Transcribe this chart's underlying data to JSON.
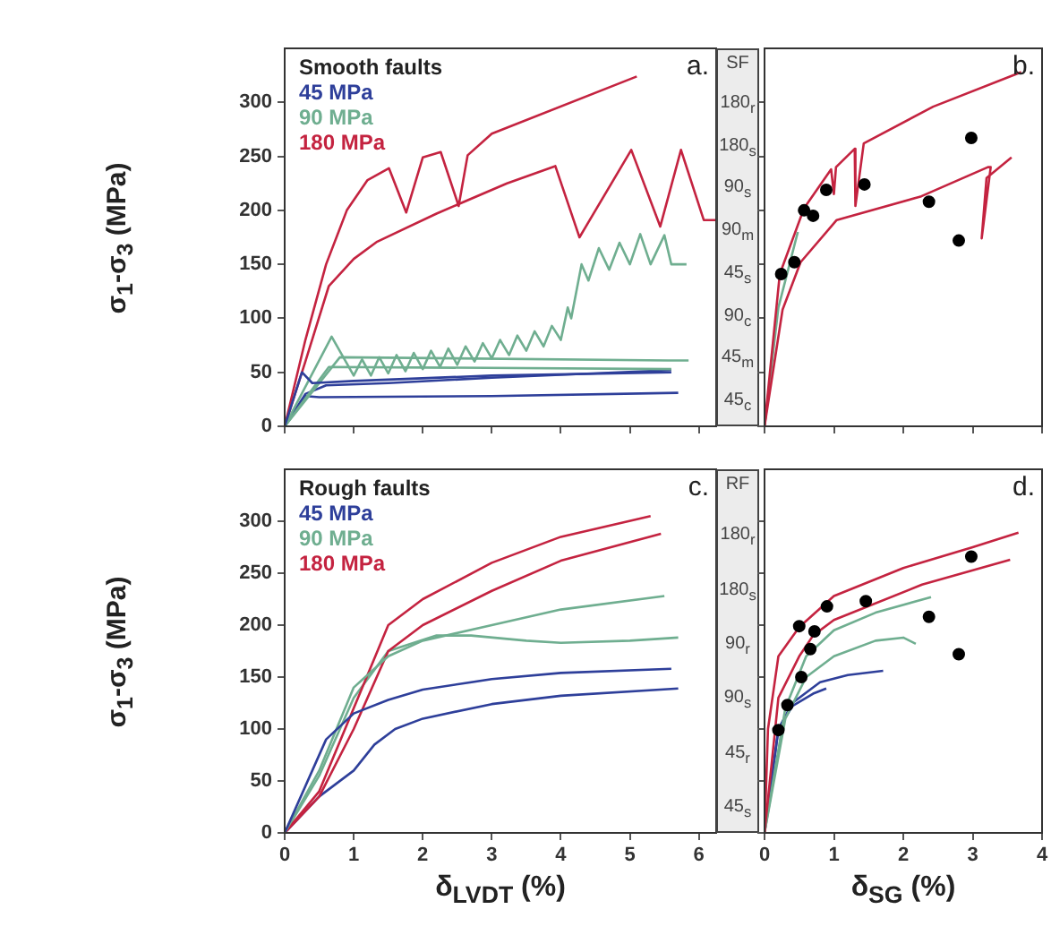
{
  "chart_data": [
    {
      "type": "line",
      "title": "a.",
      "legend_title": "Smooth faults",
      "ylabel": "σ$_{1}$-σ$_{3}$ (MPa)",
      "xlim": [
        0,
        6.25
      ],
      "xticks": [
        0,
        1,
        2,
        3,
        4,
        5,
        6
      ],
      "ylim": [
        0,
        350
      ],
      "yticks": [
        0,
        50,
        100,
        150,
        200,
        250,
        300
      ],
      "tick_labels": "y",
      "legend": "top left",
      "annotations": [
        "SF",
        "180$_{r}$",
        "180$_{s}$",
        "90$_{s}$",
        "90$_{m}$",
        "45$_{s}$",
        "90$_{c}$",
        "45$_{m}$",
        "45$_{c}$"
      ],
      "series": [
        {
          "name": "45 MPa",
          "color": "#2e3f9a",
          "x": [
            0,
            0.25,
            0.4,
            1,
            3,
            5.6
          ],
          "values": [
            0,
            50,
            40,
            42,
            47,
            50
          ]
        },
        {
          "name": "90 MPa",
          "color": "#6fae90",
          "x": [
            0,
            0.68,
            1.0,
            1.12,
            1.25,
            1.37,
            1.5,
            1.62,
            1.75,
            1.87,
            2.0,
            2.12,
            2.25,
            2.37,
            2.5,
            2.62,
            2.75,
            2.87,
            3.0,
            3.12,
            3.25,
            3.37,
            3.5,
            3.62,
            3.75,
            3.87,
            4.0,
            4.1,
            4.15,
            4.3,
            4.4,
            4.55,
            4.7,
            4.85,
            5.0,
            5.15,
            5.3,
            5.5,
            5.6,
            5.82
          ],
          "values": [
            0,
            83,
            47,
            62,
            47,
            64,
            49,
            66,
            51,
            68,
            53,
            70,
            55,
            72,
            57,
            74,
            60,
            77,
            63,
            80,
            66,
            84,
            70,
            88,
            74,
            93,
            80,
            110,
            100,
            150,
            135,
            165,
            145,
            170,
            150,
            178,
            150,
            177,
            150,
            150
          ]
        },
        {
          "name": "180 MPa",
          "color": "#c42340",
          "x": [
            0,
            0.3,
            0.6,
            0.9,
            1.2,
            1.51,
            1.76,
            2.0,
            2.26,
            2.52,
            2.65,
            3.0,
            5.1
          ],
          "values": [
            0,
            80,
            150,
            200,
            228,
            239,
            198,
            249,
            254,
            204,
            251,
            271,
            324
          ]
        },
        {
          "color": "#c42340",
          "x": [
            0,
            0.3,
            0.64,
            1.0,
            1.34,
            2.2,
            3.22,
            3.92,
            4.27,
            5.02,
            5.44,
            5.74,
            6.07,
            6.24
          ],
          "values": [
            0,
            60,
            130,
            155,
            171,
            197,
            225,
            241,
            175,
            256,
            185,
            256,
            191,
            191
          ]
        },
        {
          "color": "#6fae90",
          "x": [
            0,
            0.8,
            5.55,
            5.85
          ],
          "values": [
            0,
            64,
            61,
            61
          ]
        },
        {
          "color": "#6fae90",
          "x": [
            0,
            0.64,
            5.6
          ],
          "values": [
            0,
            55,
            53
          ]
        },
        {
          "color": "#2e3f9a",
          "x": [
            0,
            0.3,
            0.6,
            1.5,
            3,
            5.6
          ],
          "values": [
            0,
            30,
            38,
            40,
            45,
            52
          ]
        },
        {
          "color": "#2e3f9a",
          "x": [
            0,
            0.3,
            0.5,
            3,
            5.7
          ],
          "values": [
            0,
            28,
            27,
            28,
            31
          ]
        }
      ]
    },
    {
      "type": "line",
      "title": "b.",
      "xlim": [
        0,
        4
      ],
      "xticks": [
        0,
        1,
        2,
        3,
        4
      ],
      "ylim": [
        0,
        350
      ],
      "yticks": [
        0,
        50,
        100,
        150,
        200,
        250,
        300
      ],
      "tick_labels": false,
      "series": [
        {
          "color": "#c42340",
          "x": [
            0,
            0.22,
            0.57,
            0.96,
            1.0,
            1.03,
            1.3,
            1.31,
            1.43,
            2.43,
            3.7
          ],
          "values": [
            0,
            141,
            202,
            238,
            215,
            240,
            257,
            204,
            262,
            296,
            328
          ]
        },
        {
          "color": "#c42340",
          "x": [
            0,
            0.26,
            0.52,
            1.04,
            2.26,
            3.22,
            3.26,
            3.13,
            3.2,
            3.56
          ],
          "values": [
            0,
            108,
            152,
            191,
            213,
            240,
            240,
            174,
            230,
            249
          ]
        },
        {
          "color": "#6fae90",
          "x": [
            0,
            0.2,
            0.48
          ],
          "values": [
            0,
            110,
            180
          ]
        },
        {
          "type": "scatter",
          "color": "#000000",
          "marker": "circle",
          "x": [
            0.24,
            0.43,
            0.57,
            0.7,
            0.89,
            1.44,
            2.37,
            2.8,
            2.98
          ],
          "values": [
            141,
            152,
            200,
            195,
            219,
            224,
            208,
            172,
            267
          ]
        }
      ]
    },
    {
      "type": "line",
      "title": "c.",
      "legend_title": "Rough faults",
      "ylabel": "σ$_{1}$-σ$_{3}$ (MPa)",
      "xlabel": "δ$_{LVDT}$ (%)",
      "xlim": [
        0,
        6.25
      ],
      "xticks": [
        0,
        1,
        2,
        3,
        4,
        5,
        6
      ],
      "ylim": [
        0,
        350
      ],
      "yticks": [
        0,
        50,
        100,
        150,
        200,
        250,
        300
      ],
      "legend": "top left",
      "annotations": [
        "RF",
        "180$_{r}$",
        "180$_{s}$",
        "90$_{r}$",
        "90$_{s}$",
        "45$_{r}$",
        "45$_{s}$"
      ],
      "series": [
        {
          "name": "45 MPa",
          "color": "#2e3f9a",
          "x": [
            0,
            0.4,
            0.6,
            1,
            1.5,
            2,
            3,
            4,
            5.6
          ],
          "values": [
            0,
            60,
            90,
            115,
            128,
            138,
            148,
            154,
            158
          ]
        },
        {
          "name": "90 MPa",
          "color": "#6fae90",
          "x": [
            0,
            0.5,
            1,
            1.5,
            2,
            3,
            4,
            5.5
          ],
          "values": [
            0,
            60,
            140,
            170,
            185,
            200,
            215,
            228
          ]
        },
        {
          "name": "180 MPa",
          "color": "#c42340",
          "x": [
            0,
            0.5,
            1.0,
            1.5,
            2,
            3,
            4,
            5.3
          ],
          "values": [
            0,
            40,
            120,
            200,
            225,
            260,
            285,
            305
          ]
        },
        {
          "color": "#c42340",
          "x": [
            0,
            0.5,
            1,
            1.5,
            2,
            3,
            4,
            5.45
          ],
          "values": [
            0,
            35,
            100,
            175,
            200,
            233,
            262,
            288
          ]
        },
        {
          "color": "#6fae90",
          "x": [
            0,
            0.5,
            1,
            1.5,
            2.2,
            2.7,
            3.5,
            4,
            5,
            5.7
          ],
          "values": [
            0,
            55,
            130,
            175,
            190,
            190,
            185,
            183,
            185,
            188
          ]
        },
        {
          "color": "#2e3f9a",
          "x": [
            0,
            0.5,
            1,
            1.3,
            1.6,
            2,
            3,
            4,
            5.7
          ],
          "values": [
            0,
            35,
            60,
            85,
            100,
            110,
            124,
            132,
            139
          ]
        }
      ]
    },
    {
      "type": "line",
      "title": "d.",
      "xlabel": "δ$_{SG}$ (%)",
      "xlim": [
        0,
        4
      ],
      "xticks": [
        0,
        1,
        2,
        3,
        4
      ],
      "ylim": [
        0,
        350
      ],
      "yticks": [
        0,
        50,
        100,
        150,
        200,
        250,
        300
      ],
      "tick_labels": "x",
      "series": [
        {
          "color": "#c42340",
          "x": [
            0,
            0.05,
            0.2,
            0.5,
            1,
            2,
            3,
            3.66
          ],
          "values": [
            0,
            100,
            170,
            198,
            228,
            255,
            275,
            289
          ]
        },
        {
          "color": "#c42340",
          "x": [
            0,
            0.2,
            0.5,
            0.7,
            1,
            2.27,
            3.54
          ],
          "values": [
            0,
            130,
            170,
            190,
            205,
            239,
            263
          ]
        },
        {
          "color": "#6fae90",
          "x": [
            0,
            0.3,
            0.6,
            1,
            1.6,
            2.4
          ],
          "values": [
            0,
            120,
            170,
            195,
            212,
            227
          ]
        },
        {
          "color": "#6fae90",
          "x": [
            0,
            0.3,
            0.6,
            1,
            1.6,
            2.0,
            2.18
          ],
          "values": [
            0,
            110,
            150,
            170,
            185,
            188,
            182
          ]
        },
        {
          "color": "#2e3f9a",
          "x": [
            0,
            0.2,
            0.4,
            0.8,
            1.2,
            1.71
          ],
          "values": [
            0,
            100,
            125,
            145,
            152,
            156
          ]
        },
        {
          "color": "#2e3f9a",
          "x": [
            0,
            0.2,
            0.4,
            0.7,
            0.89
          ],
          "values": [
            0,
            100,
            122,
            134,
            139
          ]
        },
        {
          "type": "scatter",
          "color": "#000000",
          "marker": "circle",
          "x": [
            0.2,
            0.33,
            0.53,
            0.66,
            0.72,
            0.5,
            0.9,
            1.46,
            2.37,
            2.8,
            2.98
          ],
          "values": [
            99,
            123,
            150,
            177,
            194,
            199,
            218,
            223,
            208,
            172,
            266
          ]
        }
      ]
    }
  ]
}
